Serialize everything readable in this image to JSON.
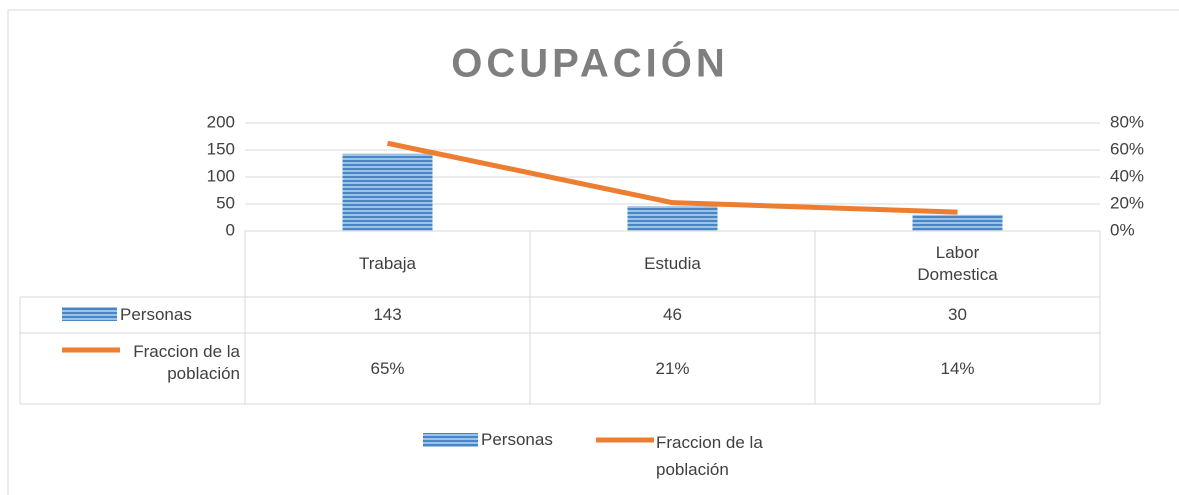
{
  "chart_data": {
    "type": "bar-line-table",
    "title": "OCUPACIÓN",
    "categories": [
      "Trabaja",
      "Estudia",
      "Labor Domestica"
    ],
    "series": [
      {
        "name": "Personas",
        "type": "bar",
        "color": "#5b9bd5",
        "values": [
          143,
          46,
          30
        ]
      },
      {
        "name": "Fraccion de la población",
        "type": "line",
        "axis": "y2",
        "color": "#ed7d31",
        "values": [
          65,
          21,
          14
        ],
        "value_labels": [
          "65%",
          "21%",
          "14%"
        ]
      }
    ],
    "ylim": [
      0,
      200
    ],
    "yticks": [
      0,
      50,
      100,
      150,
      200
    ],
    "y2lim": [
      0,
      80
    ],
    "y2ticks": [
      {
        "value": 0,
        "label": "0%"
      },
      {
        "value": 20,
        "label": "20%"
      },
      {
        "value": 40,
        "label": "40%"
      },
      {
        "value": 60,
        "label": "60%"
      },
      {
        "value": 80,
        "label": "80%"
      }
    ],
    "grid": true,
    "legend": "bottom",
    "data_table": true
  }
}
